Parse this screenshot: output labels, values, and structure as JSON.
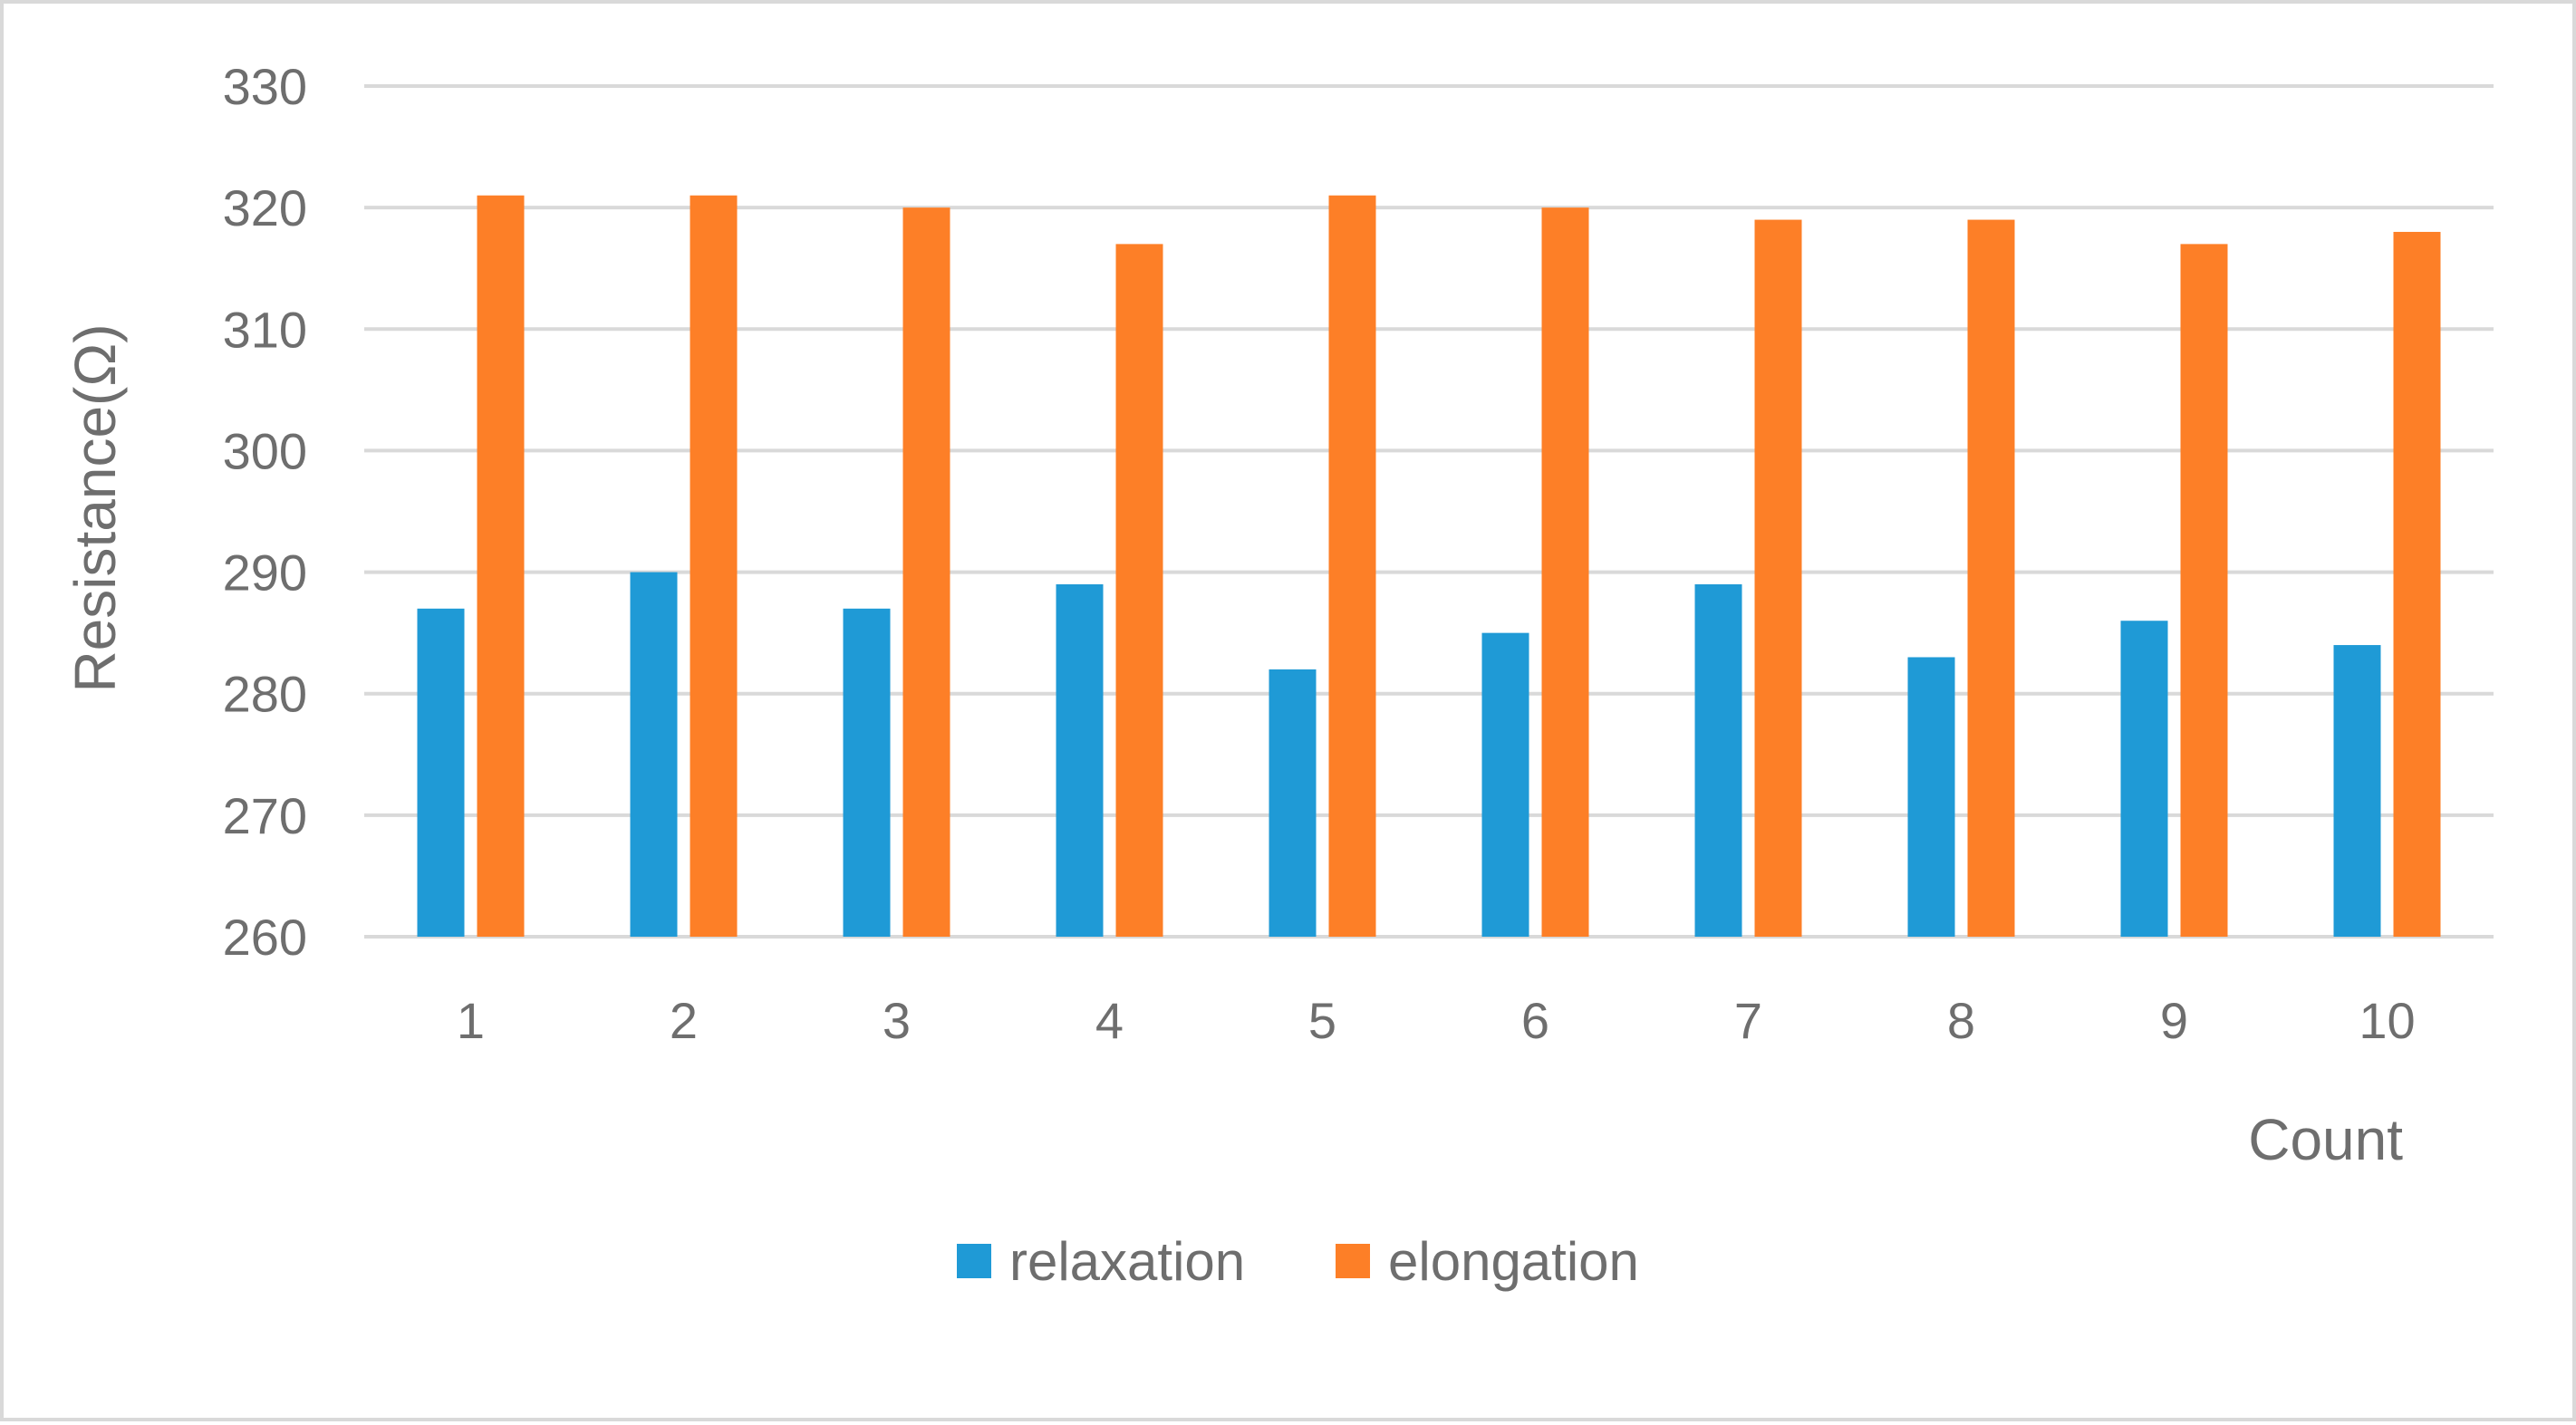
{
  "chart_data": {
    "type": "bar",
    "title": "",
    "xlabel": "Count",
    "ylabel": "Resistance(Ω)",
    "categories": [
      "1",
      "2",
      "3",
      "4",
      "5",
      "6",
      "7",
      "8",
      "9",
      "10"
    ],
    "series": [
      {
        "name": "relaxation",
        "color": "#1f9ad6",
        "values": [
          287,
          290,
          287,
          289,
          282,
          285,
          289,
          283,
          286,
          284
        ]
      },
      {
        "name": "elongation",
        "color": "#fd7f27",
        "values": [
          321,
          321,
          320,
          317,
          321,
          320,
          319,
          319,
          317,
          318
        ]
      }
    ],
    "ylim": [
      260,
      330
    ],
    "yticks": [
      "260",
      "270",
      "280",
      "290",
      "300",
      "310",
      "320",
      "330"
    ],
    "grid": true,
    "legend_position": "bottom"
  }
}
